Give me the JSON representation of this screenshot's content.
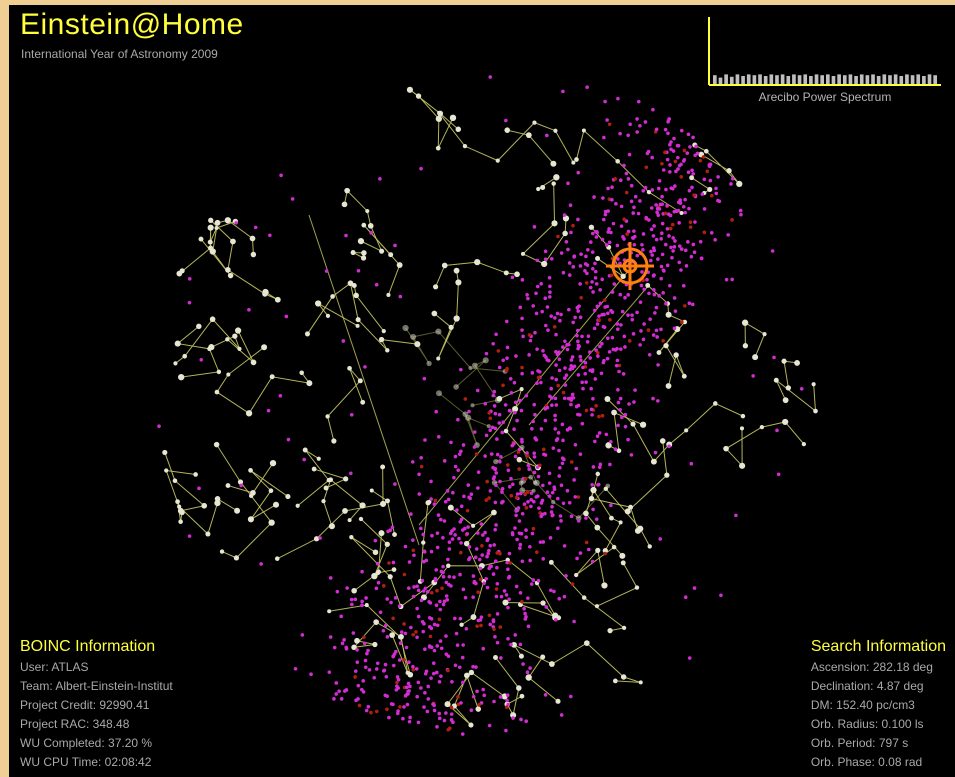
{
  "header": {
    "title": "Einstein@Home",
    "subtitle": "International Year of Astronomy 2009"
  },
  "power_spectrum": {
    "caption": "Arecibo Power Spectrum",
    "bars": [
      0.55,
      0.4,
      0.6,
      0.45,
      0.6,
      0.5,
      0.6,
      0.55,
      0.6,
      0.5,
      0.6,
      0.55,
      0.6,
      0.5,
      0.6,
      0.55,
      0.6,
      0.5,
      0.6,
      0.55,
      0.6,
      0.5,
      0.6,
      0.55,
      0.6,
      0.5,
      0.6,
      0.55,
      0.6,
      0.5,
      0.6,
      0.55,
      0.6,
      0.5,
      0.6,
      0.55,
      0.6,
      0.5,
      0.6,
      0.55
    ],
    "axis_color": "#ffff3c",
    "bar_color": "#bfbfbf"
  },
  "boinc": {
    "heading": "BOINC Information",
    "rows": [
      "User: ATLAS",
      "Team: Albert-Einstein-Institut",
      "Project Credit: 92990.41",
      "Project RAC: 348.48",
      "WU Completed: 37.20 %",
      "WU CPU Time: 02:08:42"
    ]
  },
  "search": {
    "heading": "Search Information",
    "rows": [
      "Ascension: 282.18 deg",
      "Declination: 4.87 deg",
      "DM: 152.40 pc/cm3",
      "Orb. Radius: 0.100 ls",
      "Orb. Period: 797 s",
      "Orb. Phase: 0.08 rad"
    ]
  },
  "colors": {
    "star": "#e6e6d2",
    "constellation_line": "#c8c864",
    "pulsar": "#d22cd2",
    "snr": "#b02010",
    "target": "#ff7f10"
  },
  "marker": "target-crosshair-icon"
}
